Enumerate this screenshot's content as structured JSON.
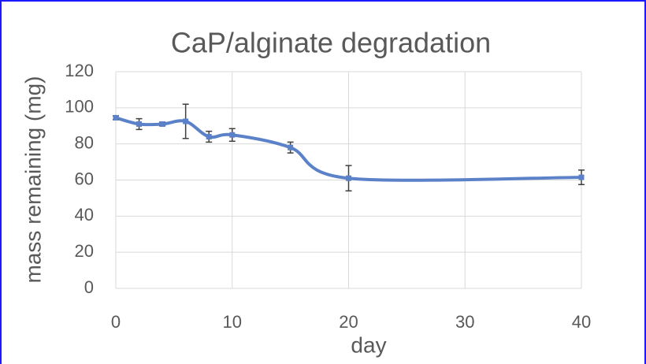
{
  "chart_data": {
    "type": "line",
    "title": "CaP/alginate degradation",
    "x_label": "day",
    "y_label": "mass remaining (mg)",
    "x": [
      0,
      2,
      4,
      6,
      8,
      10,
      15,
      20,
      40
    ],
    "series": [
      {
        "name": "mass remaining",
        "color": "#5b82c8",
        "values": [
          94.5,
          91,
          91,
          92.5,
          84,
          85,
          78,
          61,
          61.5
        ],
        "errors": [
          1,
          3,
          1,
          9.5,
          3,
          3.5,
          3,
          7,
          4
        ]
      }
    ],
    "xlim": [
      0,
      40
    ],
    "xticks": [
      0,
      10,
      20,
      30,
      40
    ],
    "ylim": [
      0,
      120
    ],
    "yticks": [
      0,
      20,
      40,
      60,
      80,
      100,
      120
    ],
    "grid": true
  }
}
